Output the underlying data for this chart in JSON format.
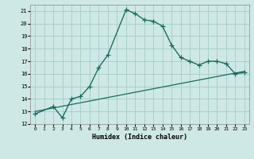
{
  "title": "",
  "xlabel": "Humidex (Indice chaleur)",
  "bg_color": "#cde8e5",
  "grid_color": "#aacfcc",
  "line_color": "#1a6b60",
  "xlim": [
    -0.5,
    23.5
  ],
  "ylim": [
    12,
    21.5
  ],
  "xticks": [
    0,
    1,
    2,
    3,
    4,
    5,
    6,
    7,
    8,
    9,
    10,
    11,
    12,
    13,
    14,
    15,
    16,
    17,
    18,
    19,
    20,
    21,
    22,
    23
  ],
  "yticks": [
    12,
    13,
    14,
    15,
    16,
    17,
    18,
    19,
    20,
    21
  ],
  "curve_x": [
    0,
    2,
    3,
    4,
    5,
    6,
    7,
    8,
    10,
    11,
    12,
    13,
    14,
    15,
    16,
    17,
    18,
    19,
    20,
    21,
    22,
    23
  ],
  "curve_y": [
    12.8,
    13.4,
    12.5,
    14.0,
    14.2,
    15.0,
    16.5,
    17.5,
    21.1,
    20.8,
    20.3,
    20.2,
    19.8,
    18.3,
    17.3,
    17.0,
    16.7,
    17.0,
    17.0,
    16.8,
    16.0,
    16.1
  ],
  "trend_x": [
    0,
    23
  ],
  "trend_y": [
    13.0,
    16.2
  ]
}
